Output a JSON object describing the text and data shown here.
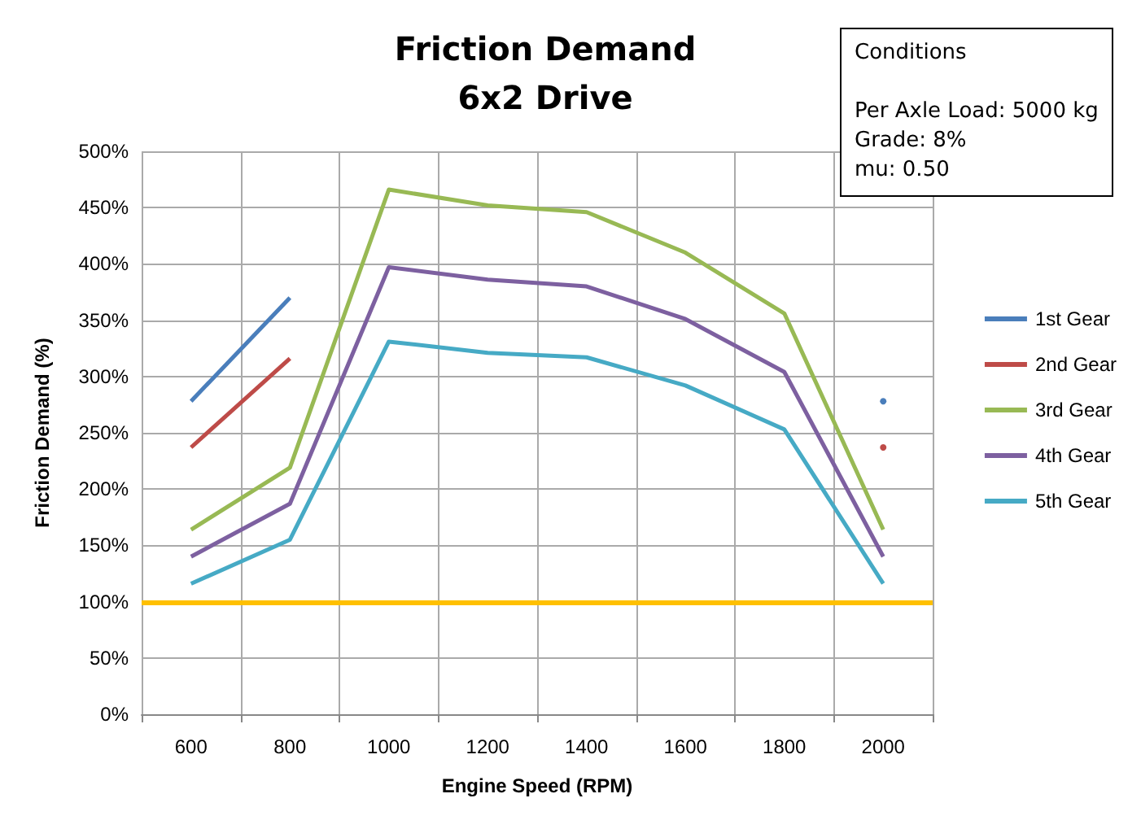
{
  "chart_data": {
    "type": "line",
    "title": "Friction Demand\n6x2 Drive",
    "xlabel": "Engine Speed (RPM)",
    "ylabel": "Friction Demand (%)",
    "categories": [
      "600",
      "800",
      "1000",
      "1200",
      "1400",
      "1600",
      "1800",
      "2000"
    ],
    "series": [
      {
        "name": "1st Gear",
        "color": "#4a7ebb",
        "values": [
          278,
          370,
          null,
          null,
          null,
          null,
          null,
          278
        ]
      },
      {
        "name": "2nd Gear",
        "color": "#be4b48",
        "values": [
          237,
          316,
          null,
          null,
          null,
          null,
          null,
          237
        ]
      },
      {
        "name": "3rd Gear",
        "color": "#98b954",
        "values": [
          164,
          219,
          466,
          452,
          446,
          410,
          356,
          164
        ]
      },
      {
        "name": "4th Gear",
        "color": "#7d60a0",
        "values": [
          140,
          187,
          397,
          386,
          380,
          351,
          304,
          140
        ]
      },
      {
        "name": "5th Gear",
        "color": "#46aac5",
        "values": [
          116,
          155,
          331,
          321,
          317,
          292,
          253,
          116
        ]
      }
    ],
    "ylim": [
      0,
      500
    ],
    "yticks": [
      {
        "value": 0,
        "label": "0%"
      },
      {
        "value": 50,
        "label": "50%"
      },
      {
        "value": 100,
        "label": "100%"
      },
      {
        "value": 150,
        "label": "150%"
      },
      {
        "value": 200,
        "label": "200%"
      },
      {
        "value": 250,
        "label": "250%"
      },
      {
        "value": 300,
        "label": "300%"
      },
      {
        "value": 350,
        "label": "350%"
      },
      {
        "value": 400,
        "label": "400%"
      },
      {
        "value": 450,
        "label": "450%"
      },
      {
        "value": 500,
        "label": "500%"
      }
    ],
    "ref_lines": [
      {
        "axis": "y",
        "value": 100,
        "color": "#ffc000"
      }
    ],
    "annotations": [
      "Conditions\n\nPer Axle Load: 5000 kg\nGrade: 8%\nmu: 0.50"
    ],
    "grid": true,
    "legend": "right",
    "marker": "none",
    "line_style": "solid"
  }
}
